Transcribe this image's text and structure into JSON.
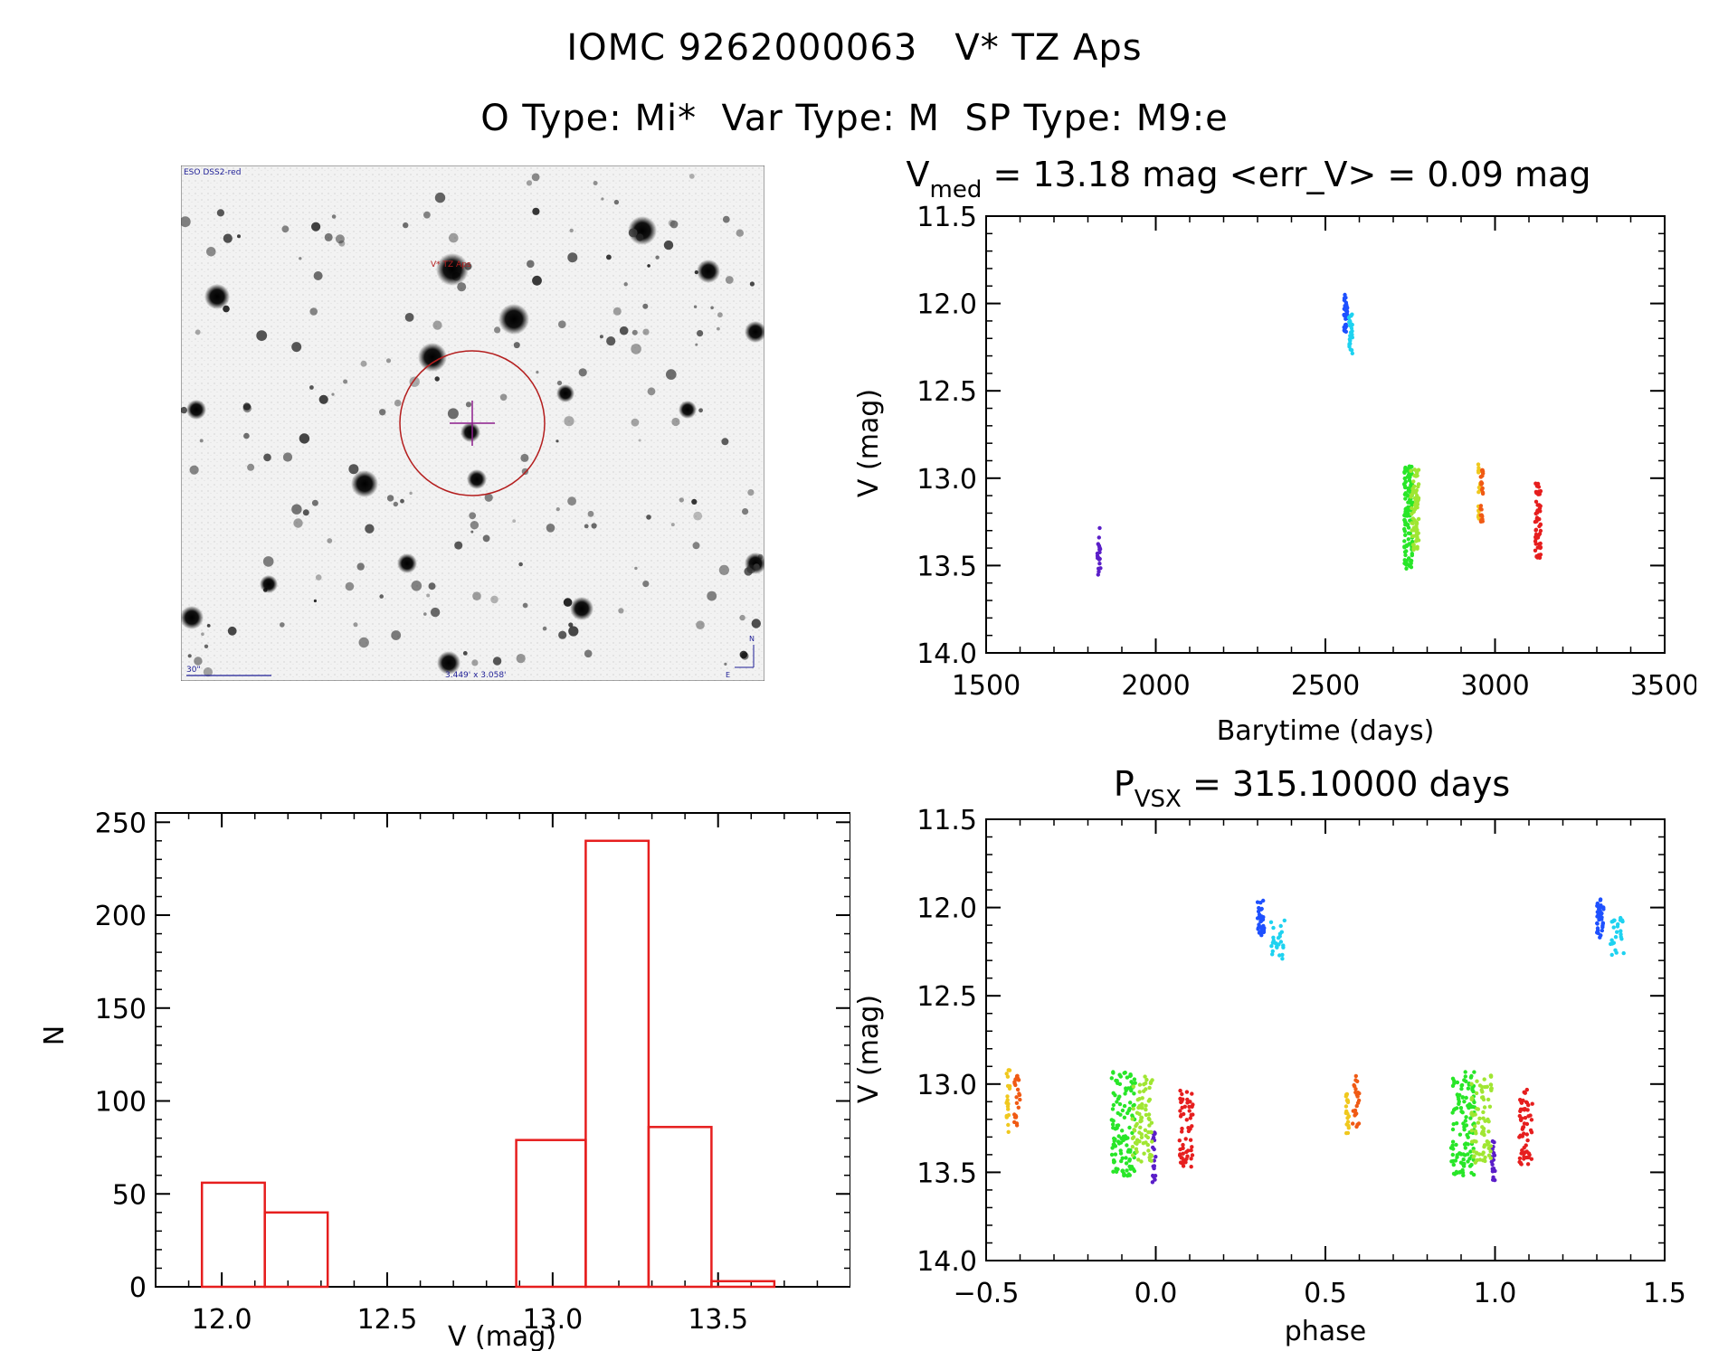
{
  "header": {
    "title_line1": "IOMC 9262000063   V* TZ Aps",
    "title_line2": "O Type: Mi*  Var Type: M  SP Type: M9:e"
  },
  "sky_image": {
    "survey_label": "ESO DSS2-red",
    "object_label": "V* TZ Aps",
    "scale_label": "30\"",
    "fov_label": "3.449' x 3.058'",
    "north_label": "N",
    "east_label": "E"
  },
  "chart_data": [
    {
      "id": "lightcurve",
      "type": "scatter",
      "title_main": "V",
      "title_sub": "med",
      "title_rest": " = 13.18 mag <err_V> = 0.09 mag",
      "xlabel": "Barytime (days)",
      "ylabel": "V (mag)",
      "xlim": [
        1500,
        3500
      ],
      "ylim": [
        14.0,
        11.5
      ],
      "x_ticks": [
        1500,
        2000,
        2500,
        3000,
        3500
      ],
      "x_tick_labels": [
        "1500",
        "2000",
        "2500",
        "3000",
        "3500"
      ],
      "y_ticks": [
        11.5,
        12.0,
        12.5,
        13.0,
        13.5,
        14.0
      ],
      "y_tick_labels": [
        "11.5",
        "12.0",
        "12.5",
        "13.0",
        "13.5",
        "14.0"
      ],
      "series": [
        {
          "name": "season-1",
          "color": "#5a1ec8",
          "x_range": [
            1828,
            1838
          ],
          "y_range": [
            13.27,
            13.56
          ],
          "n": 20
        },
        {
          "name": "season-2a",
          "color": "#1e50ff",
          "x_range": [
            2555,
            2565
          ],
          "y_range": [
            11.95,
            12.17
          ],
          "n": 35
        },
        {
          "name": "season-2b",
          "color": "#1ed2f0",
          "x_range": [
            2567,
            2580
          ],
          "y_range": [
            12.05,
            12.3
          ],
          "n": 25
        },
        {
          "name": "season-3a",
          "color": "#28e628",
          "x_range": [
            2732,
            2757
          ],
          "y_range": [
            12.93,
            13.52
          ],
          "n": 120
        },
        {
          "name": "season-3b",
          "color": "#a0e632",
          "x_range": [
            2752,
            2775
          ],
          "y_range": [
            12.95,
            13.45
          ],
          "n": 80
        },
        {
          "name": "season-4a",
          "color": "#f0c81e",
          "x_range": [
            2950,
            2957
          ],
          "y_range": [
            12.92,
            13.28
          ],
          "n": 20
        },
        {
          "name": "season-4b",
          "color": "#f05a14",
          "x_range": [
            2957,
            2965
          ],
          "y_range": [
            12.95,
            13.25
          ],
          "n": 25
        },
        {
          "name": "season-5",
          "color": "#e61e1e",
          "x_range": [
            3118,
            3135
          ],
          "y_range": [
            13.03,
            13.47
          ],
          "n": 60
        }
      ]
    },
    {
      "id": "histogram",
      "type": "bar",
      "xlabel": "V (mag)",
      "ylabel": "N",
      "xlim": [
        11.8,
        13.9
      ],
      "ylim": [
        0,
        255
      ],
      "x_ticks": [
        12.0,
        12.5,
        13.0,
        13.5
      ],
      "x_tick_labels": [
        "12.0",
        "12.5",
        "13.0",
        "13.5"
      ],
      "y_ticks": [
        0,
        50,
        100,
        150,
        200,
        250
      ],
      "y_tick_labels": [
        "0",
        "50",
        "100",
        "150",
        "200",
        "250"
      ],
      "bin_edges": [
        11.94,
        12.13,
        12.32,
        12.51,
        12.7,
        12.89,
        13.1,
        13.29,
        13.48,
        13.67
      ],
      "values": [
        56,
        40,
        0,
        0,
        0,
        79,
        240,
        86,
        3
      ],
      "bar_color": "#e61e1e"
    },
    {
      "id": "phaseplot",
      "type": "scatter",
      "title_main": "P",
      "title_sub": "VSX",
      "title_rest": " = 315.10000 days",
      "xlabel": "phase",
      "ylabel": "V (mag)",
      "xlim": [
        -0.5,
        1.5
      ],
      "ylim": [
        14.0,
        11.5
      ],
      "x_ticks": [
        -0.5,
        0.0,
        0.5,
        1.0,
        1.5
      ],
      "x_tick_labels": [
        "−0.5",
        "0.0",
        "0.5",
        "1.0",
        "1.5"
      ],
      "y_ticks": [
        11.5,
        12.0,
        12.5,
        13.0,
        13.5,
        14.0
      ],
      "y_tick_labels": [
        "11.5",
        "12.0",
        "12.5",
        "13.0",
        "13.5",
        "14.0"
      ],
      "series": [
        {
          "name": "season-1",
          "color": "#5a1ec8",
          "x_range": [
            -0.01,
            0.0
          ],
          "y_range": [
            13.27,
            13.56
          ],
          "n": 20,
          "repeat": true
        },
        {
          "name": "season-2a",
          "color": "#1e50ff",
          "x_range": [
            0.3,
            0.32
          ],
          "y_range": [
            11.95,
            12.17
          ],
          "n": 35,
          "repeat": true
        },
        {
          "name": "season-2b",
          "color": "#1ed2f0",
          "x_range": [
            0.34,
            0.38
          ],
          "y_range": [
            12.05,
            12.3
          ],
          "n": 25,
          "repeat": true
        },
        {
          "name": "season-3a",
          "color": "#28e628",
          "x_range": [
            -0.13,
            -0.06
          ],
          "y_range": [
            12.93,
            13.52
          ],
          "n": 120,
          "repeat": true
        },
        {
          "name": "season-3b",
          "color": "#a0e632",
          "x_range": [
            -0.07,
            -0.01
          ],
          "y_range": [
            12.95,
            13.45
          ],
          "n": 80,
          "repeat": true
        },
        {
          "name": "season-4a",
          "color": "#f0c81e",
          "x_range": [
            -0.44,
            -0.43
          ],
          "y_range": [
            12.92,
            13.28
          ],
          "n": 20,
          "repeat": true
        },
        {
          "name": "season-4b",
          "color": "#f05a14",
          "x_range": [
            -0.42,
            -0.4
          ],
          "y_range": [
            12.95,
            13.25
          ],
          "n": 25,
          "repeat": true
        },
        {
          "name": "season-5",
          "color": "#e61e1e",
          "x_range": [
            0.07,
            0.11
          ],
          "y_range": [
            13.03,
            13.47
          ],
          "n": 60,
          "repeat": true
        }
      ]
    }
  ]
}
